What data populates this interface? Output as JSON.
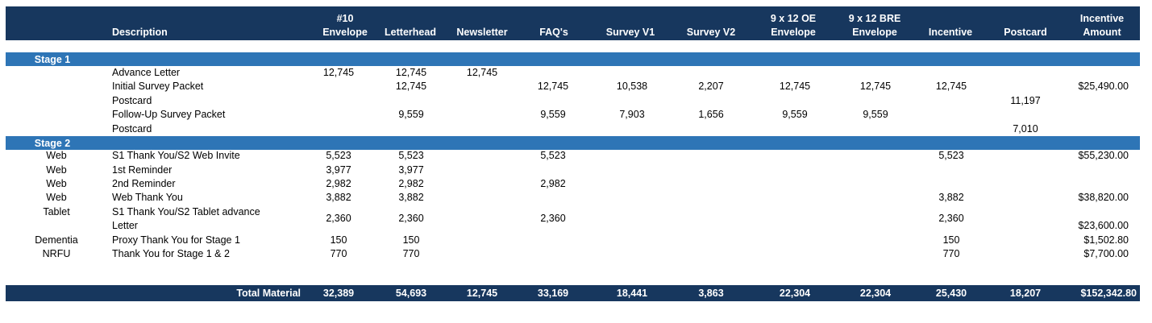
{
  "columns": {
    "description": "Description",
    "c1": [
      "#10",
      "Envelope"
    ],
    "c2": "Letterhead",
    "c3": "Newsletter",
    "c4": "FAQ's",
    "c5": "Survey V1",
    "c6": "Survey V2",
    "c7": [
      "9 x 12 OE",
      "Envelope"
    ],
    "c8": [
      "9 x 12 BRE",
      "Envelope"
    ],
    "c9": "Incentive",
    "c10": "Postcard",
    "c11": [
      "Incentive",
      "Amount"
    ]
  },
  "stage1": {
    "label": "Stage 1",
    "rows": [
      {
        "desc": "Advance Letter",
        "c1": "12,745",
        "c2": "12,745",
        "c3": "12,745"
      },
      {
        "desc": "Initial Survey Packet",
        "c2": "12,745",
        "c4": "12,745",
        "c5": "10,538",
        "c6": "2,207",
        "c7": "12,745",
        "c8": "12,745",
        "c9": "12,745",
        "c11": "$25,490.00"
      },
      {
        "desc": "Postcard",
        "c10": "11,197"
      },
      {
        "desc": "Follow-Up Survey Packet",
        "c2": "9,559",
        "c4": "9,559",
        "c5": "7,903",
        "c6": "1,656",
        "c7": "9,559",
        "c8": "9,559"
      },
      {
        "desc": "Postcard",
        "c10": "7,010"
      }
    ]
  },
  "stage2": {
    "label": "Stage 2",
    "rows": [
      {
        "mode": "Web",
        "desc": "S1 Thank You/S2 Web Invite",
        "c1": "5,523",
        "c2": "5,523",
        "c4": "5,523",
        "c9": "5,523",
        "c11": "$55,230.00"
      },
      {
        "mode": "Web",
        "desc": "1st Reminder",
        "c1": "3,977",
        "c2": "3,977"
      },
      {
        "mode": "Web",
        "desc": "2nd Reminder",
        "c1": "2,982",
        "c2": "2,982",
        "c4": "2,982"
      },
      {
        "mode": "Web",
        "desc": "Web Thank You",
        "c1": "3,882",
        "c2": "3,882",
        "c9": "3,882",
        "c11": "$38,820.00"
      },
      {
        "mode": "Tablet",
        "desc1": "S1 Thank You/S2 Tablet advance",
        "desc2": "Letter",
        "c1": "2,360",
        "c2": "2,360",
        "c4": "2,360",
        "c9": "2,360",
        "c11": "$23,600.00"
      },
      {
        "mode": "Dementia",
        "desc": "Proxy Thank You for Stage 1",
        "c1": "150",
        "c2": "150",
        "c9": "150",
        "c11": "$1,502.80"
      },
      {
        "mode": "NRFU",
        "desc": "Thank You for Stage 1 & 2",
        "c1": "770",
        "c2": "770",
        "c9": "770",
        "c11": "$7,700.00"
      }
    ]
  },
  "totals": {
    "label": "Total Material",
    "c1": "32,389",
    "c2": "54,693",
    "c3": "12,745",
    "c4": "33,169",
    "c5": "18,441",
    "c6": "3,863",
    "c7": "22,304",
    "c8": "22,304",
    "c9": "25,430",
    "c10": "18,207",
    "c11": "$152,342.80"
  }
}
